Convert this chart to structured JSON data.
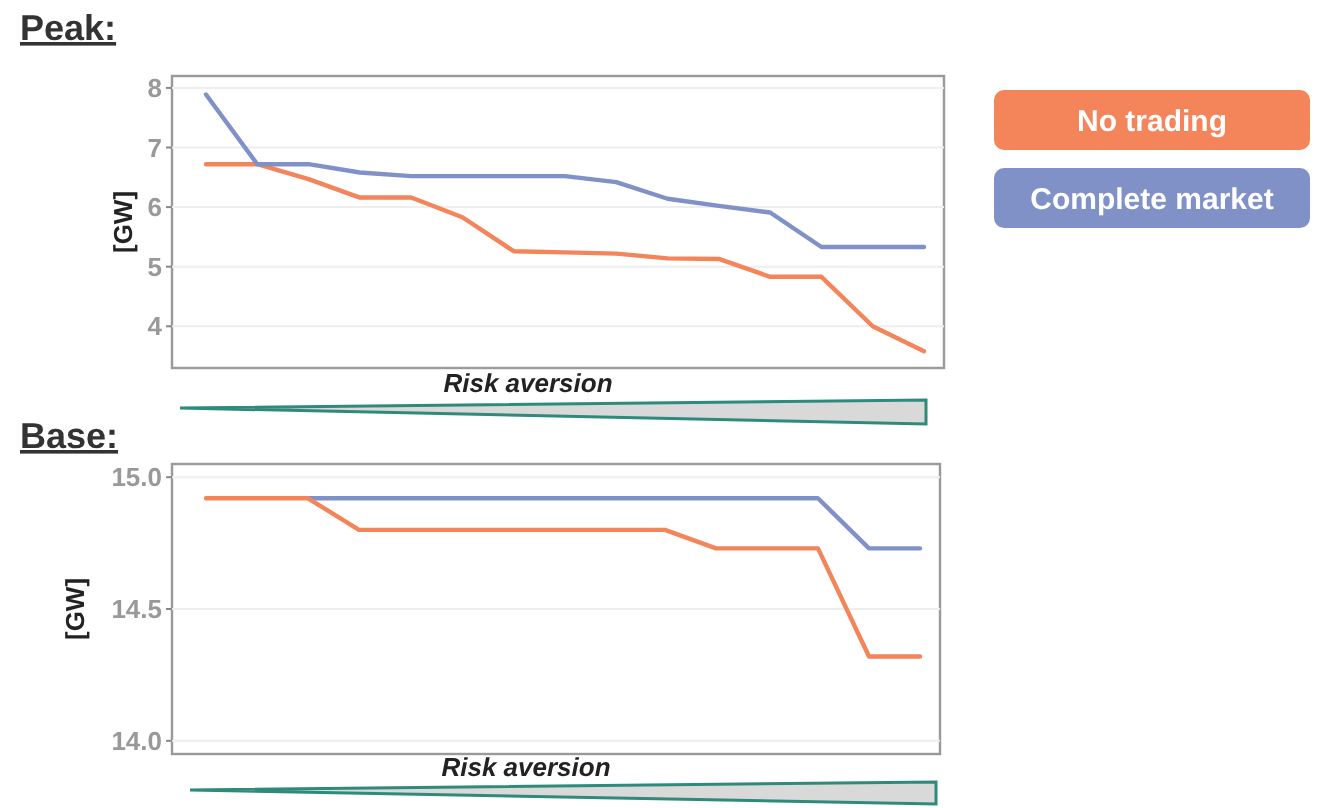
{
  "chart_data": [
    {
      "type": "line",
      "title": "Peak:",
      "xlabel": "Risk aversion",
      "ylabel": "[GW]",
      "categories": [
        null,
        null,
        null,
        null,
        null,
        null,
        null,
        null,
        null,
        null,
        null,
        null,
        null,
        null,
        null
      ],
      "ylim": [
        3.3,
        8.2
      ],
      "yticks": [
        4,
        5,
        6,
        7,
        8
      ],
      "grid": "y",
      "legend": "right",
      "series": [
        {
          "name": "No trading",
          "color": "#f4845a",
          "values": [
            6.72,
            6.72,
            6.47,
            6.16,
            6.16,
            5.83,
            5.26,
            5.24,
            5.22,
            5.14,
            5.13,
            4.83,
            4.83,
            4.0,
            3.58
          ]
        },
        {
          "name": "Complete market",
          "color": "#8091c8",
          "values": [
            7.89,
            6.72,
            6.72,
            6.58,
            6.52,
            6.52,
            6.52,
            6.52,
            6.42,
            6.14,
            6.02,
            5.91,
            5.33,
            5.33,
            5.33
          ]
        }
      ]
    },
    {
      "type": "line",
      "title": "Base:",
      "xlabel": "Risk aversion",
      "ylabel": "[GW]",
      "categories": [
        null,
        null,
        null,
        null,
        null,
        null,
        null,
        null,
        null,
        null,
        null,
        null,
        null,
        null,
        null
      ],
      "ylim": [
        13.95,
        15.05
      ],
      "yticks": [
        {
          "value": 14,
          "label": "14.0"
        },
        {
          "value": 14.5,
          "label": "14.5"
        },
        {
          "value": 15,
          "label": "15.0"
        }
      ],
      "grid": "y",
      "series": [
        {
          "color": "#8091c8",
          "values": [
            null,
            null,
            14.92,
            14.92,
            14.92,
            14.92,
            14.92,
            14.92,
            14.92,
            14.92,
            14.92,
            14.92,
            14.92,
            14.73,
            14.73
          ]
        },
        {
          "color": "#f4845a",
          "values": [
            14.92,
            14.92,
            14.92,
            14.8,
            14.8,
            14.8,
            14.8,
            14.8,
            14.8,
            14.8,
            14.73,
            14.73,
            14.73,
            14.32,
            14.32
          ]
        }
      ]
    }
  ]
}
